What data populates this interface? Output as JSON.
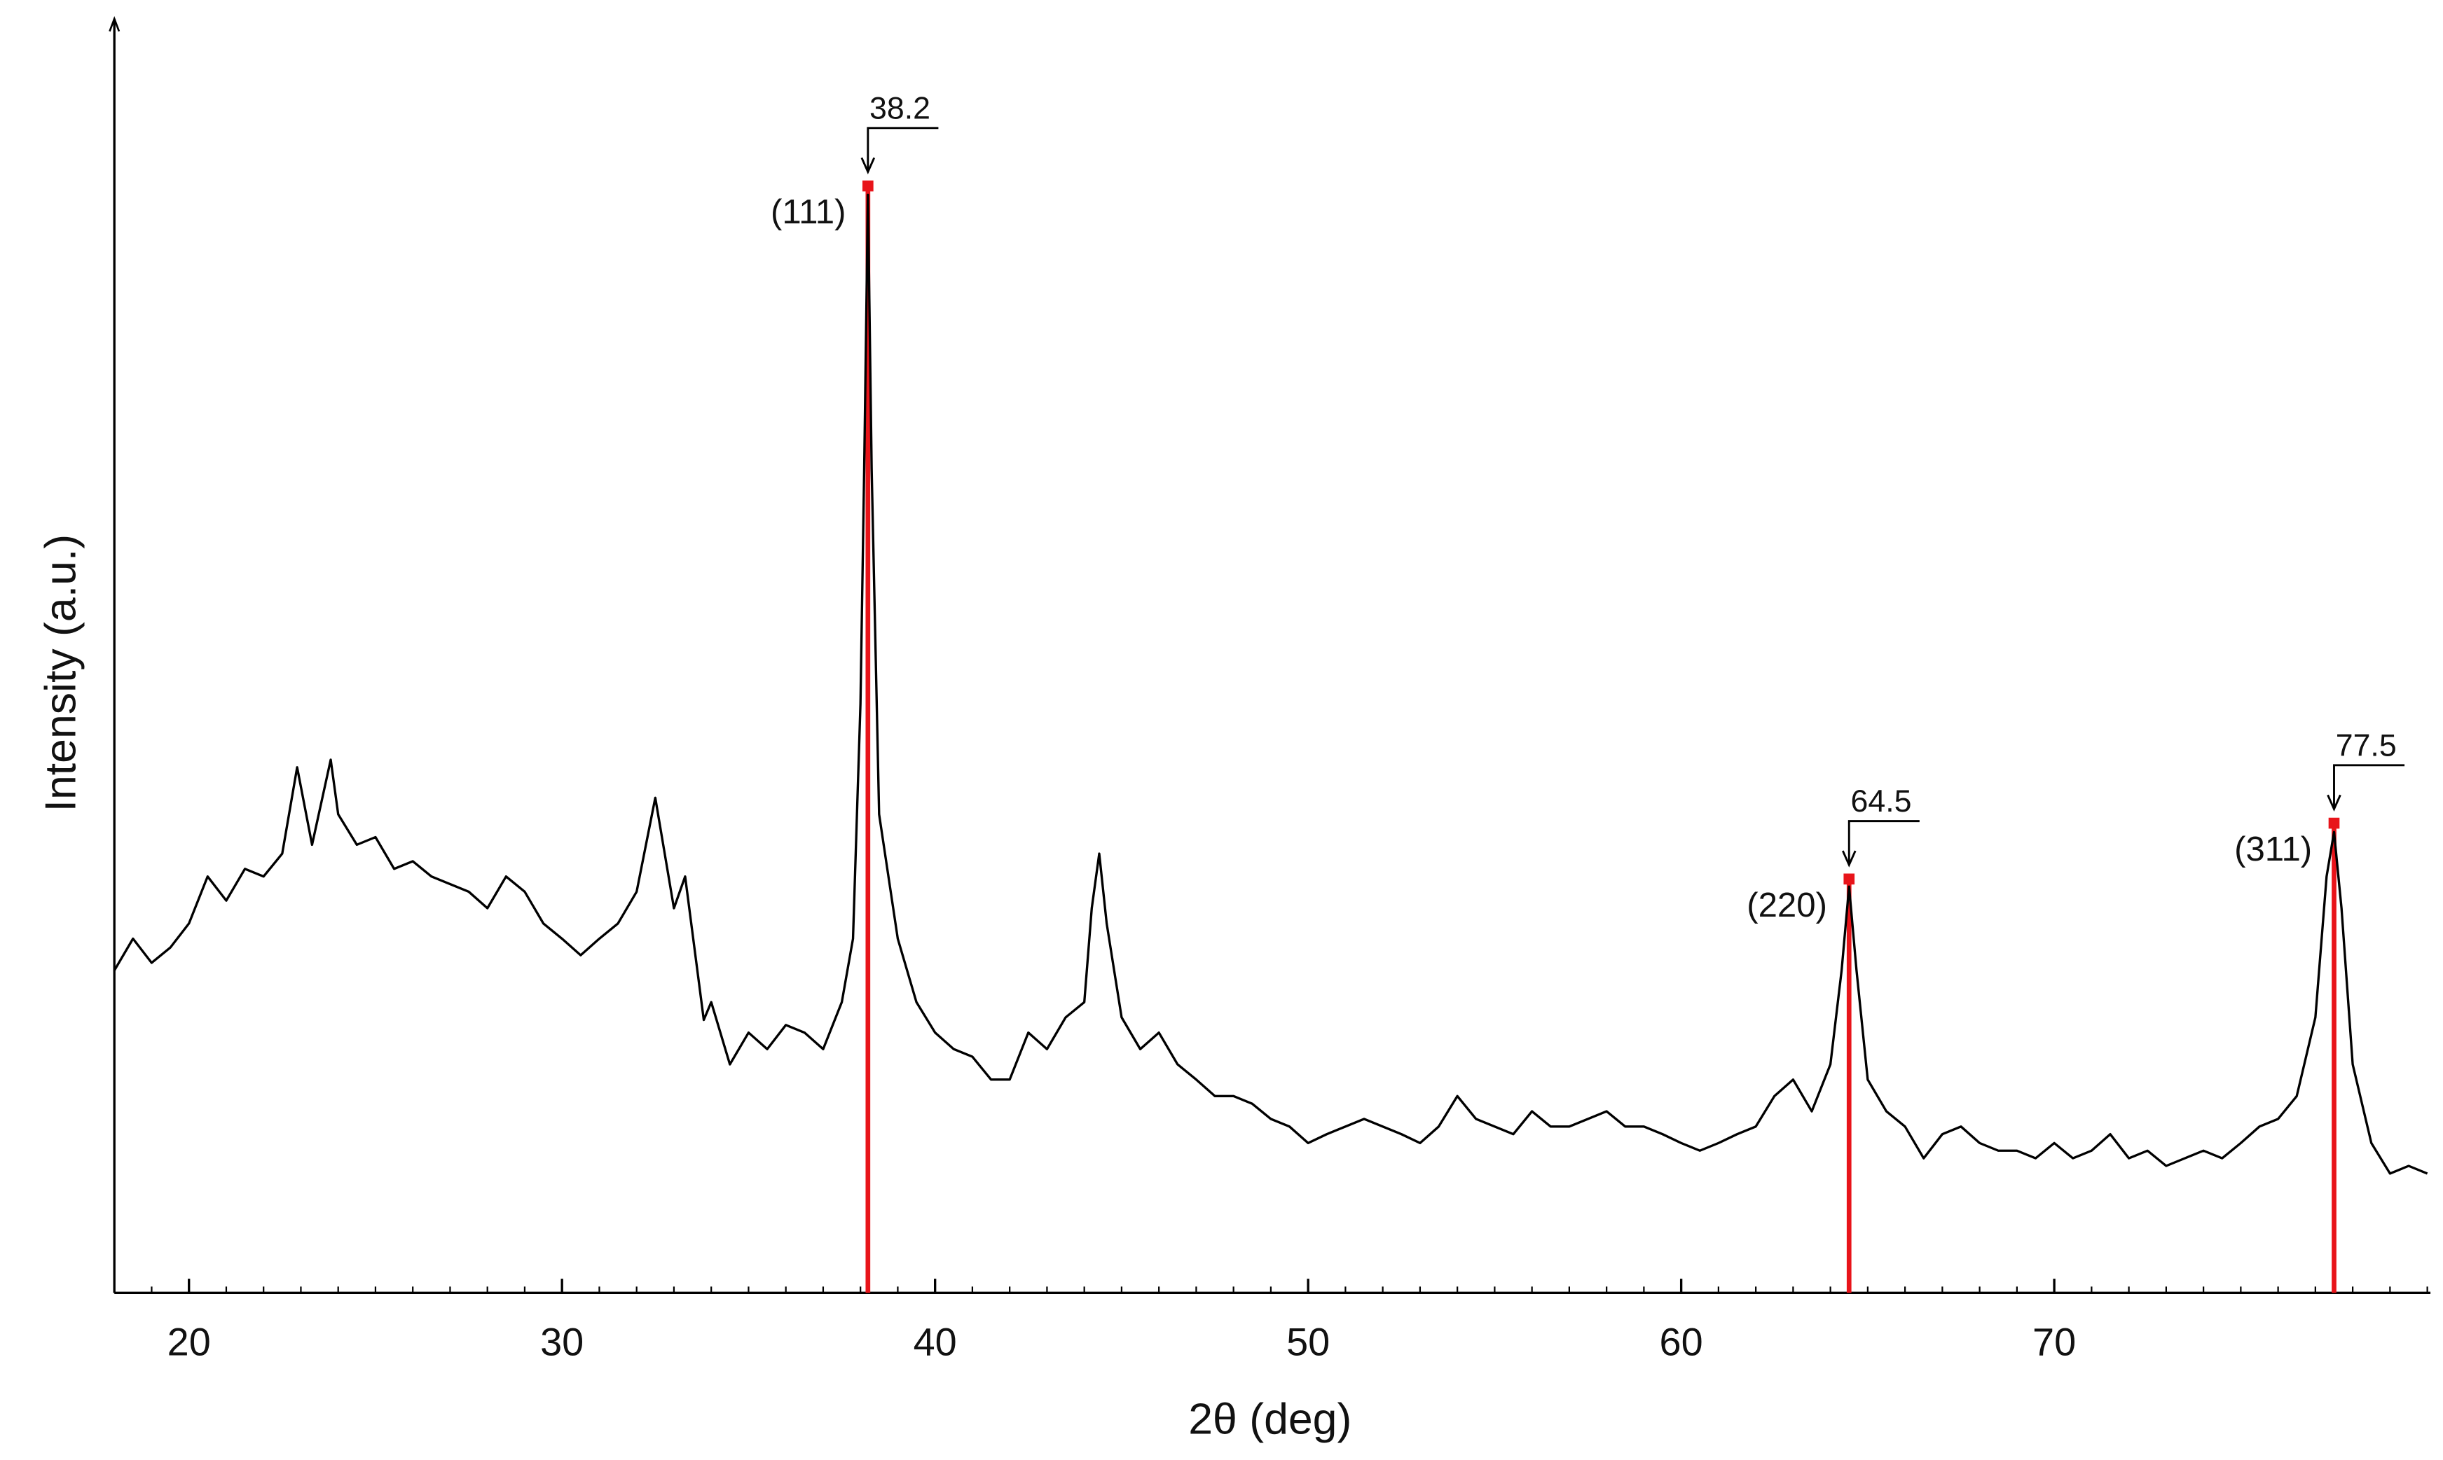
{
  "chart_data": {
    "type": "line",
    "x_label": "2θ (deg)",
    "y_label": "Intensity (a.u.)",
    "color": "#000000",
    "peak_color": "#e8141a",
    "xlim": [
      18,
      80
    ],
    "ylim": [
      0,
      100
    ],
    "xticks": [
      20,
      30,
      40,
      50,
      60,
      70
    ],
    "x": [
      18,
      18.5,
      19,
      19.5,
      20,
      20.5,
      21,
      21.5,
      22,
      22.5,
      22.9,
      23.3,
      23.8,
      24,
      24.5,
      25,
      25.5,
      26,
      26.5,
      27,
      27.5,
      28,
      28.5,
      29,
      29.5,
      30,
      30.5,
      31,
      31.5,
      32,
      32.5,
      33,
      33.3,
      33.8,
      34,
      34.5,
      35,
      35.5,
      36,
      36.5,
      37,
      37.5,
      37.8,
      38,
      38.1,
      38.2,
      38.3,
      38.5,
      39,
      39.5,
      40,
      40.5,
      41,
      41.5,
      42,
      42.5,
      43,
      43.5,
      44,
      44.2,
      44.4,
      44.6,
      45,
      45.5,
      46,
      46.5,
      47,
      47.5,
      48,
      48.5,
      49,
      49.5,
      50,
      50.5,
      51,
      51.5,
      52,
      52.5,
      53,
      53.5,
      54,
      54.5,
      55,
      55.5,
      56,
      56.5,
      57,
      57.5,
      58,
      58.5,
      59,
      59.5,
      60,
      60.5,
      61,
      61.5,
      62,
      62.5,
      63,
      63.5,
      64,
      64.3,
      64.5,
      64.7,
      65,
      65.5,
      66,
      66.5,
      67,
      67.5,
      68,
      68.5,
      69,
      69.5,
      70,
      70.5,
      71,
      71.5,
      72,
      72.5,
      73,
      73.5,
      74,
      74.5,
      75,
      75.5,
      76,
      76.5,
      77,
      77.3,
      77.5,
      77.7,
      78,
      78.5,
      79,
      79.5,
      80
    ],
    "values": [
      25.4,
      27.9,
      26.0,
      27.2,
      29.1,
      32.8,
      30.9,
      33.4,
      32.8,
      34.6,
      41.4,
      35.3,
      42.0,
      37.7,
      35.3,
      35.9,
      33.4,
      34.0,
      32.8,
      32.2,
      31.6,
      30.3,
      32.8,
      31.6,
      29.1,
      27.9,
      26.6,
      27.9,
      29.1,
      31.6,
      39.0,
      30.3,
      32.8,
      21.5,
      22.9,
      18.0,
      20.5,
      19.2,
      21.1,
      20.5,
      19.2,
      22.9,
      27.9,
      46.4,
      64.9,
      86.5,
      64.9,
      37.7,
      27.9,
      22.9,
      20.5,
      19.2,
      18.6,
      16.8,
      16.8,
      20.5,
      19.2,
      21.7,
      22.9,
      30.3,
      34.6,
      29.1,
      21.7,
      19.2,
      20.5,
      18.0,
      16.8,
      15.5,
      15.5,
      14.9,
      13.7,
      13.1,
      11.8,
      12.5,
      13.1,
      13.7,
      13.1,
      12.5,
      11.8,
      13.1,
      15.5,
      13.7,
      13.1,
      12.5,
      14.3,
      13.1,
      13.1,
      13.7,
      14.3,
      13.1,
      13.1,
      12.5,
      11.8,
      11.2,
      11.8,
      12.5,
      13.1,
      15.5,
      16.8,
      14.3,
      18.0,
      25.4,
      32.0,
      25.4,
      16.8,
      14.3,
      13.1,
      10.6,
      12.5,
      13.1,
      11.8,
      11.2,
      11.2,
      10.6,
      11.8,
      10.6,
      11.2,
      12.5,
      10.6,
      11.2,
      10.0,
      10.6,
      11.2,
      10.6,
      11.8,
      13.1,
      13.7,
      15.5,
      21.7,
      32.8,
      36.3,
      30.3,
      18.0,
      11.8,
      9.4,
      10.0,
      9.4
    ],
    "peaks": [
      {
        "x": 38.2,
        "y": 87.2,
        "hkl": "(111)"
      },
      {
        "x": 64.5,
        "y": 32.6,
        "hkl": "(220)"
      },
      {
        "x": 77.5,
        "y": 37.0,
        "hkl": "(311)"
      }
    ]
  }
}
